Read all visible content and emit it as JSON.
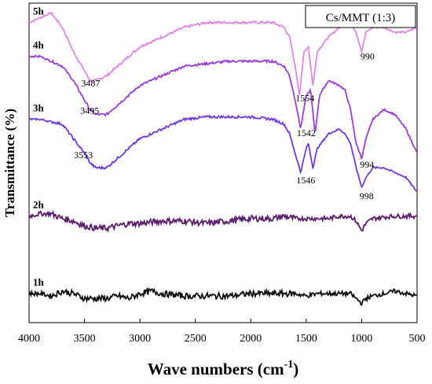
{
  "chart_data": {
    "type": "line",
    "title": "",
    "xlabel": "Wave numbers (cm",
    "xlabel_sup": "-1",
    "xlabel_close": ")",
    "ylabel": "Transmittance (%)",
    "xlim": [
      4000,
      500
    ],
    "x_reversed": true,
    "x_ticks": [
      4000,
      3500,
      3000,
      2500,
      2000,
      1500,
      1000,
      500
    ],
    "y_tick_labels_shown": false,
    "grid": false,
    "legend": {
      "text": "Cs/MMT (1:3)",
      "placement": "top-right"
    },
    "series": [
      {
        "name": "5h",
        "color": "#dd88e6",
        "points": [
          [
            4000,
            36
          ],
          [
            3900,
            37
          ],
          [
            3800,
            38
          ],
          [
            3700,
            35
          ],
          [
            3600,
            30
          ],
          [
            3500,
            26
          ],
          [
            3450,
            24
          ],
          [
            3400,
            24
          ],
          [
            3300,
            25
          ],
          [
            3200,
            27
          ],
          [
            3100,
            29
          ],
          [
            3000,
            31
          ],
          [
            2800,
            33
          ],
          [
            2600,
            35
          ],
          [
            2400,
            36
          ],
          [
            2200,
            36
          ],
          [
            2000,
            36
          ],
          [
            1800,
            36
          ],
          [
            1700,
            35
          ],
          [
            1650,
            33
          ],
          [
            1600,
            27
          ],
          [
            1560,
            21
          ],
          [
            1520,
            30
          ],
          [
            1480,
            31
          ],
          [
            1440,
            23
          ],
          [
            1400,
            30
          ],
          [
            1300,
            33
          ],
          [
            1200,
            35
          ],
          [
            1100,
            36
          ],
          [
            1050,
            34
          ],
          [
            1000,
            30
          ],
          [
            960,
            34
          ],
          [
            900,
            35
          ],
          [
            800,
            35
          ],
          [
            700,
            34
          ],
          [
            600,
            34
          ],
          [
            500,
            35
          ]
        ]
      },
      {
        "name": "4h",
        "color": "#9a3fd8",
        "points": [
          [
            4000,
            29
          ],
          [
            3900,
            29
          ],
          [
            3800,
            28
          ],
          [
            3700,
            27
          ],
          [
            3600,
            24
          ],
          [
            3500,
            20
          ],
          [
            3450,
            18
          ],
          [
            3400,
            17
          ],
          [
            3300,
            17
          ],
          [
            3200,
            19
          ],
          [
            3100,
            21
          ],
          [
            3000,
            23
          ],
          [
            2800,
            25
          ],
          [
            2600,
            27
          ],
          [
            2400,
            27.5
          ],
          [
            2200,
            28
          ],
          [
            2000,
            28
          ],
          [
            1800,
            28
          ],
          [
            1700,
            27
          ],
          [
            1650,
            25
          ],
          [
            1600,
            20
          ],
          [
            1550,
            14
          ],
          [
            1500,
            21
          ],
          [
            1460,
            22
          ],
          [
            1420,
            13
          ],
          [
            1380,
            21
          ],
          [
            1300,
            24
          ],
          [
            1200,
            23
          ],
          [
            1150,
            22
          ],
          [
            1100,
            18
          ],
          [
            1050,
            11
          ],
          [
            1000,
            8
          ],
          [
            960,
            12
          ],
          [
            900,
            16
          ],
          [
            800,
            18
          ],
          [
            700,
            17
          ],
          [
            600,
            14
          ],
          [
            500,
            9
          ]
        ]
      },
      {
        "name": "3h",
        "color": "#6f3bdc",
        "points": [
          [
            4000,
            16
          ],
          [
            3900,
            16
          ],
          [
            3800,
            15.5
          ],
          [
            3700,
            15
          ],
          [
            3600,
            12
          ],
          [
            3500,
            9
          ],
          [
            3450,
            7
          ],
          [
            3400,
            6
          ],
          [
            3300,
            6
          ],
          [
            3200,
            8
          ],
          [
            3100,
            10
          ],
          [
            3000,
            12
          ],
          [
            2800,
            14
          ],
          [
            2600,
            16
          ],
          [
            2400,
            16.5
          ],
          [
            2200,
            16.5
          ],
          [
            2000,
            16.5
          ],
          [
            1800,
            16
          ],
          [
            1700,
            15
          ],
          [
            1650,
            13
          ],
          [
            1600,
            9
          ],
          [
            1550,
            5
          ],
          [
            1500,
            10
          ],
          [
            1480,
            11
          ],
          [
            1440,
            6
          ],
          [
            1400,
            10
          ],
          [
            1300,
            13
          ],
          [
            1200,
            14
          ],
          [
            1150,
            13
          ],
          [
            1100,
            11
          ],
          [
            1050,
            6
          ],
          [
            1000,
            2
          ],
          [
            960,
            4
          ],
          [
            900,
            6
          ],
          [
            800,
            6
          ],
          [
            700,
            5
          ],
          [
            600,
            4
          ],
          [
            500,
            1
          ]
        ]
      },
      {
        "name": "2h",
        "color": "#5c1f6e",
        "points": [
          [
            4000,
            -4
          ],
          [
            3900,
            -3.5
          ],
          [
            3800,
            -3.5
          ],
          [
            3700,
            -4.5
          ],
          [
            3600,
            -5
          ],
          [
            3500,
            -6
          ],
          [
            3400,
            -6.5
          ],
          [
            3300,
            -6.5
          ],
          [
            3200,
            -6
          ],
          [
            3100,
            -5.5
          ],
          [
            3000,
            -5.5
          ],
          [
            2800,
            -5
          ],
          [
            2600,
            -5
          ],
          [
            2400,
            -5.5
          ],
          [
            2200,
            -5
          ],
          [
            2000,
            -4.5
          ],
          [
            1800,
            -4.5
          ],
          [
            1700,
            -4
          ],
          [
            1600,
            -4.5
          ],
          [
            1500,
            -4.5
          ],
          [
            1400,
            -4.5
          ],
          [
            1300,
            -4.5
          ],
          [
            1200,
            -4
          ],
          [
            1100,
            -4
          ],
          [
            1050,
            -5
          ],
          [
            1000,
            -7
          ],
          [
            960,
            -5.5
          ],
          [
            900,
            -4.5
          ],
          [
            800,
            -4.2
          ],
          [
            700,
            -4
          ],
          [
            600,
            -4
          ],
          [
            500,
            -4
          ]
        ]
      },
      {
        "name": "1h",
        "color": "#111111",
        "points": [
          [
            4000,
            -20
          ],
          [
            3900,
            -20
          ],
          [
            3800,
            -20.5
          ],
          [
            3700,
            -19.5
          ],
          [
            3600,
            -20
          ],
          [
            3500,
            -21
          ],
          [
            3400,
            -21
          ],
          [
            3300,
            -21
          ],
          [
            3200,
            -20.5
          ],
          [
            3100,
            -21
          ],
          [
            3000,
            -20
          ],
          [
            2900,
            -19.5
          ],
          [
            2800,
            -20
          ],
          [
            2600,
            -20.5
          ],
          [
            2400,
            -20.5
          ],
          [
            2200,
            -20.5
          ],
          [
            2000,
            -20
          ],
          [
            1800,
            -20
          ],
          [
            1700,
            -20
          ],
          [
            1600,
            -20
          ],
          [
            1500,
            -20.5
          ],
          [
            1400,
            -20
          ],
          [
            1300,
            -20
          ],
          [
            1200,
            -20
          ],
          [
            1100,
            -20
          ],
          [
            1050,
            -21
          ],
          [
            1000,
            -22
          ],
          [
            960,
            -21
          ],
          [
            900,
            -20.5
          ],
          [
            800,
            -20
          ],
          [
            700,
            -19.5
          ],
          [
            600,
            -20
          ],
          [
            500,
            -20.5
          ]
        ]
      }
    ],
    "peak_labels": [
      {
        "text": "3487",
        "series": "5h",
        "x": 3487
      },
      {
        "text": "1554",
        "series": "5h",
        "x": 1554
      },
      {
        "text": "990",
        "series": "5h",
        "x": 990
      },
      {
        "text": "3495",
        "series": "4h",
        "x": 3495
      },
      {
        "text": "1542",
        "series": "4h",
        "x": 1542
      },
      {
        "text": "994",
        "series": "4h",
        "x": 994
      },
      {
        "text": "3553",
        "series": "3h",
        "x": 3553
      },
      {
        "text": "1546",
        "series": "3h",
        "x": 1546
      },
      {
        "text": "998",
        "series": "3h",
        "x": 998
      }
    ]
  }
}
